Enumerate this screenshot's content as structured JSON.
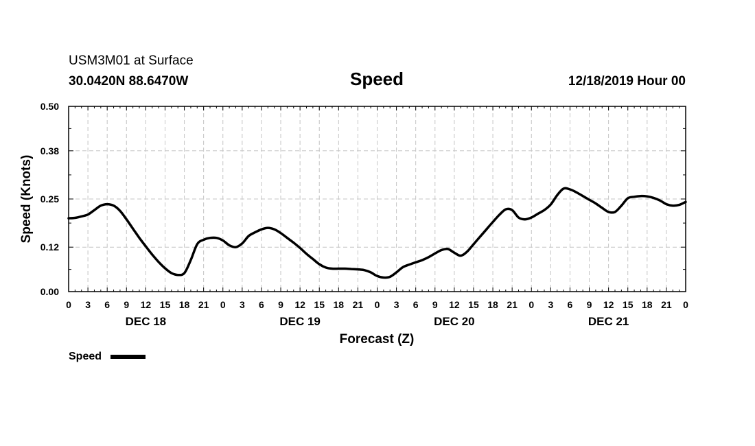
{
  "header": {
    "station": "USM3M01 at Surface",
    "location": "30.0420N 88.6470W",
    "title": "Speed",
    "date": "12/18/2019 Hour 00"
  },
  "chart_data": {
    "type": "line",
    "title": "Speed",
    "xlabel": "Forecast (Z)",
    "ylabel": "Speed (Knots)",
    "ylim": [
      0,
      0.5
    ],
    "xlim": [
      0,
      96
    ],
    "yticks": [
      0.0,
      0.12,
      0.25,
      0.38,
      0.5
    ],
    "ytick_labels": [
      "0.00",
      "0.12",
      "0.25",
      "0.38",
      "0.50"
    ],
    "xtick_hours": [
      0,
      3,
      6,
      9,
      12,
      15,
      18,
      21,
      24,
      27,
      30,
      33,
      36,
      39,
      42,
      45,
      48,
      51,
      54,
      57,
      60,
      63,
      66,
      69,
      72,
      75,
      78,
      81,
      84,
      87,
      90,
      93,
      96
    ],
    "xtick_labels": [
      "0",
      "3",
      "6",
      "9",
      "12",
      "15",
      "18",
      "21",
      "0",
      "3",
      "6",
      "9",
      "12",
      "15",
      "18",
      "21",
      "0",
      "3",
      "6",
      "9",
      "12",
      "15",
      "18",
      "21",
      "0",
      "3",
      "6",
      "9",
      "12",
      "15",
      "18",
      "21",
      "0"
    ],
    "day_labels": [
      {
        "label": "DEC 18",
        "hour": 12
      },
      {
        "label": "DEC 19",
        "hour": 36
      },
      {
        "label": "DEC 20",
        "hour": 60
      },
      {
        "label": "DEC 21",
        "hour": 84
      }
    ],
    "grid": true,
    "legend": {
      "label": "Speed",
      "placement": "bottom-left"
    },
    "series": [
      {
        "name": "Speed",
        "x": [
          0,
          1,
          2,
          3,
          4,
          5,
          6,
          7,
          8,
          9,
          10,
          11,
          12,
          13,
          14,
          15,
          16,
          17,
          18,
          19,
          20,
          21,
          22,
          23,
          24,
          25,
          26,
          27,
          28,
          29,
          30,
          31,
          32,
          33,
          34,
          35,
          36,
          37,
          38,
          39,
          40,
          41,
          42,
          43,
          44,
          45,
          46,
          47,
          48,
          49,
          50,
          51,
          52,
          53,
          54,
          55,
          56,
          57,
          58,
          59,
          60,
          61,
          62,
          63,
          64,
          65,
          66,
          67,
          68,
          69,
          70,
          71,
          72,
          73,
          74,
          75,
          76,
          77,
          78,
          79,
          80,
          81,
          82,
          83,
          84,
          85,
          86,
          87,
          88,
          89,
          90,
          91,
          92,
          93,
          94,
          95,
          96
        ],
        "values": [
          0.198,
          0.199,
          0.203,
          0.208,
          0.22,
          0.232,
          0.236,
          0.232,
          0.218,
          0.195,
          0.17,
          0.145,
          0.122,
          0.1,
          0.08,
          0.063,
          0.05,
          0.045,
          0.05,
          0.085,
          0.128,
          0.14,
          0.145,
          0.145,
          0.138,
          0.125,
          0.12,
          0.13,
          0.15,
          0.16,
          0.168,
          0.172,
          0.168,
          0.158,
          0.145,
          0.132,
          0.118,
          0.102,
          0.088,
          0.074,
          0.065,
          0.062,
          0.062,
          0.062,
          0.061,
          0.06,
          0.058,
          0.052,
          0.042,
          0.038,
          0.04,
          0.052,
          0.066,
          0.073,
          0.079,
          0.085,
          0.093,
          0.103,
          0.112,
          0.115,
          0.105,
          0.097,
          0.108,
          0.128,
          0.148,
          0.168,
          0.188,
          0.207,
          0.222,
          0.22,
          0.2,
          0.195,
          0.2,
          0.21,
          0.22,
          0.235,
          0.26,
          0.278,
          0.276,
          0.268,
          0.258,
          0.248,
          0.238,
          0.226,
          0.215,
          0.215,
          0.232,
          0.252,
          0.256,
          0.258,
          0.257,
          0.253,
          0.246,
          0.236,
          0.232,
          0.234,
          0.242
        ]
      }
    ]
  }
}
